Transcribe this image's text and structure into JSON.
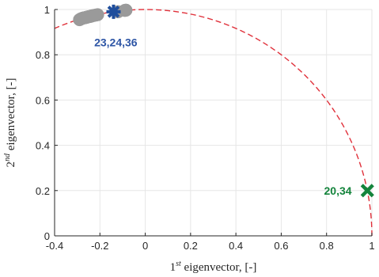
{
  "chart_data": {
    "type": "scatter",
    "title": "",
    "xlabel": {
      "base": "1",
      "sup": "st",
      "rest": " eigenvector, [-]"
    },
    "ylabel": {
      "base": "2",
      "sup": "nd",
      "rest": " eigenvector, [-]"
    },
    "xlim": [
      -0.4,
      1.0
    ],
    "ylim": [
      0,
      1.0
    ],
    "xticks": [
      -0.4,
      -0.2,
      0,
      0.2,
      0.4,
      0.6,
      0.8,
      1
    ],
    "xtick_labels": [
      "-0.4",
      "-0.2",
      "0",
      "0.2",
      "0.4",
      "0.6",
      "0.8",
      "1"
    ],
    "yticks": [
      0,
      0.2,
      0.4,
      0.6,
      0.8,
      1
    ],
    "ytick_labels": [
      "0",
      "0.2",
      "0.4",
      "0.6",
      "0.8",
      "1"
    ],
    "grid": true,
    "reference_curve": {
      "shape": "unit-circle",
      "color": "#e0303a",
      "style": "dashed"
    },
    "series": [
      {
        "marker": "circle",
        "color": "#9a9a9a",
        "points": [
          [
            -0.29,
            0.955
          ],
          [
            -0.285,
            0.958
          ],
          [
            -0.28,
            0.96
          ],
          [
            -0.275,
            0.962
          ],
          [
            -0.27,
            0.963
          ],
          [
            -0.265,
            0.964
          ],
          [
            -0.26,
            0.965
          ],
          [
            -0.255,
            0.967
          ],
          [
            -0.25,
            0.968
          ],
          [
            -0.245,
            0.969
          ],
          [
            -0.24,
            0.97
          ],
          [
            -0.235,
            0.972
          ],
          [
            -0.23,
            0.973
          ],
          [
            -0.22,
            0.975
          ],
          [
            -0.21,
            0.977
          ],
          [
            -0.12,
            0.99
          ],
          [
            -0.09,
            0.996
          ],
          [
            -0.085,
            0.997
          ]
        ]
      },
      {
        "marker": "star",
        "color": "#1f4e9c",
        "points": [
          [
            -0.14,
            0.99
          ]
        ],
        "label": "23,24,36"
      },
      {
        "marker": "x",
        "color": "#14843c",
        "points": [
          [
            0.98,
            0.2
          ]
        ],
        "label": "20,34"
      }
    ],
    "annotations": [
      {
        "text": "23,24,36",
        "x": -0.13,
        "y": 0.855,
        "color": "#2d55a5"
      },
      {
        "text": "20,34",
        "x": 0.85,
        "y": 0.2,
        "color": "#14843c"
      }
    ]
  }
}
